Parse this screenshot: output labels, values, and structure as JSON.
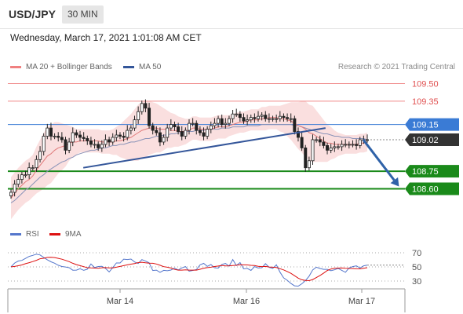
{
  "header": {
    "pair": "USD/JPY",
    "timeframe": "30 MIN"
  },
  "datetime": "Wednesday, March 17, 2021 1:01:08 AM CET",
  "legend": {
    "ma20": {
      "label": "MA 20 + Bollinger Bands",
      "color": "#f08080"
    },
    "ma50": {
      "label": "MA 50",
      "color": "#34569a"
    }
  },
  "credit": "Research © 2021 Trading Central",
  "rsi_legend": {
    "rsi": {
      "label": "RSI",
      "color": "#5577cc"
    },
    "ma9": {
      "label": "9MA",
      "color": "#dd1111"
    }
  },
  "chart_data": {
    "type": "candlestick",
    "instrument": "USD/JPY",
    "interval": "30 MIN",
    "x_ticks": [
      "Mar 14",
      "Mar 16",
      "Mar 17"
    ],
    "y_range": [
      108.45,
      109.58
    ],
    "price_levels": [
      {
        "label": "109.50",
        "value": 109.5,
        "kind": "resistance",
        "color": "#e05050"
      },
      {
        "label": "109.35",
        "value": 109.35,
        "kind": "resistance",
        "color": "#e05050"
      },
      {
        "label": "109.15",
        "value": 109.15,
        "kind": "pivot",
        "color": "#3a7bd5"
      },
      {
        "label": "109.02",
        "value": 109.02,
        "kind": "last",
        "color": "#333333"
      },
      {
        "label": "108.75",
        "value": 108.75,
        "kind": "support",
        "color": "#1a8a1a"
      },
      {
        "label": "108.60",
        "value": 108.6,
        "kind": "support",
        "color": "#1a8a1a"
      }
    ],
    "trendlines": [
      {
        "from": [
          0.19,
          108.78
        ],
        "to": [
          0.8,
          109.12
        ]
      }
    ],
    "forecast_arrow": {
      "from": [
        0.895,
        109.02
      ],
      "to": [
        0.985,
        108.62
      ]
    },
    "close": [
      108.57,
      108.64,
      108.68,
      108.72,
      108.72,
      108.78,
      108.78,
      108.85,
      108.92,
      109.05,
      109.12,
      109.05,
      109.05,
      109.04,
      109.02,
      108.93,
      109.0,
      109.08,
      109.06,
      109.04,
      109.03,
      109.01,
      108.98,
      108.98,
      108.95,
      108.98,
      109.02,
      109.0,
      109.04,
      109.06,
      109.05,
      109.04,
      109.1,
      109.12,
      109.19,
      109.26,
      109.33,
      109.29,
      109.14,
      109.1,
      109.08,
      109.0,
      109.04,
      109.12,
      109.15,
      109.13,
      109.09,
      109.05,
      109.1,
      109.16,
      109.16,
      109.1,
      109.08,
      109.05,
      109.11,
      109.14,
      109.16,
      109.2,
      109.15,
      109.16,
      109.2,
      109.24,
      109.24,
      109.21,
      109.18,
      109.19,
      109.21,
      109.2,
      109.22,
      109.23,
      109.2,
      109.2,
      109.2,
      109.2,
      109.22,
      109.21,
      109.2,
      109.2,
      109.09,
      109.04,
      108.95,
      108.78,
      108.84,
      109.02,
      109.02,
      109.0,
      108.97,
      108.93,
      108.95,
      108.96,
      108.96,
      108.98,
      108.98,
      108.98,
      108.98,
      108.97,
      109.02,
      109.02,
      109.02
    ],
    "ma20": [
      108.52,
      108.56,
      108.6,
      108.63,
      108.66,
      108.68,
      108.71,
      108.76,
      108.8,
      108.84,
      108.88,
      108.9,
      108.93,
      108.95,
      108.96,
      108.97,
      108.99,
      109.0,
      109.0,
      109.01,
      109.01,
      109.01,
      109.01,
      109.01,
      109.01,
      109.0,
      109.0,
      109.0,
      109.0,
      109.01,
      109.01,
      109.02,
      109.03,
      109.04,
      109.06,
      109.08,
      109.1,
      109.11,
      109.12,
      109.12,
      109.12,
      109.11,
      109.11,
      109.11,
      109.1,
      109.1,
      109.09,
      109.09,
      109.09,
      109.1,
      109.12,
      109.12,
      109.11,
      109.11,
      109.11,
      109.11,
      109.12,
      109.13,
      109.13,
      109.13,
      109.14,
      109.15,
      109.16,
      109.17,
      109.17,
      109.18,
      109.19,
      109.19,
      109.19,
      109.2,
      109.2,
      109.21,
      109.21,
      109.21,
      109.2,
      109.2,
      109.19,
      109.18,
      109.16,
      109.14,
      109.13,
      109.11,
      109.08,
      109.07,
      109.05,
      109.03,
      109.01,
      108.99,
      108.99,
      108.98,
      108.98,
      108.98,
      108.98,
      108.98,
      108.98,
      108.98,
      108.99,
      108.99,
      109.0
    ],
    "ma50": [
      108.48,
      108.5,
      108.53,
      108.56,
      108.59,
      108.61,
      108.64,
      108.67,
      108.7,
      108.72,
      108.75,
      108.77,
      108.79,
      108.81,
      108.83,
      108.84,
      108.86,
      108.87,
      108.89,
      108.9,
      108.91,
      108.92,
      108.93,
      108.93,
      108.94,
      108.95,
      108.95,
      108.96,
      108.97,
      108.97,
      108.98,
      108.98,
      108.99,
      109.0,
      109.0,
      109.01,
      109.02,
      109.03,
      109.03,
      109.04,
      109.05,
      109.05,
      109.06,
      109.06,
      109.07,
      109.07,
      109.08,
      109.08,
      109.09,
      109.09,
      109.09,
      109.1,
      109.1,
      109.1,
      109.11,
      109.11,
      109.11,
      109.11,
      109.12,
      109.12,
      109.12,
      109.13,
      109.13,
      109.13,
      109.13,
      109.14,
      109.14,
      109.14,
      109.14,
      109.15,
      109.15,
      109.15,
      109.15,
      109.15,
      109.15,
      109.15,
      109.15,
      109.15,
      109.14,
      109.14,
      109.13,
      109.12,
      109.11,
      109.1,
      109.09,
      109.08,
      109.07,
      109.07,
      109.06,
      109.05,
      109.05,
      109.04,
      109.04,
      109.04,
      109.03,
      109.03,
      109.03,
      109.03,
      109.02
    ],
    "bb_width": [
      0.18,
      0.18,
      0.18,
      0.18,
      0.18,
      0.18,
      0.18,
      0.2,
      0.22,
      0.24,
      0.25,
      0.25,
      0.24,
      0.22,
      0.2,
      0.18,
      0.15,
      0.13,
      0.11,
      0.1,
      0.1,
      0.1,
      0.1,
      0.1,
      0.1,
      0.1,
      0.1,
      0.1,
      0.11,
      0.12,
      0.14,
      0.16,
      0.18,
      0.2,
      0.22,
      0.24,
      0.24,
      0.24,
      0.23,
      0.22,
      0.21,
      0.2,
      0.18,
      0.16,
      0.15,
      0.14,
      0.13,
      0.12,
      0.11,
      0.1,
      0.1,
      0.1,
      0.1,
      0.1,
      0.1,
      0.1,
      0.1,
      0.1,
      0.1,
      0.1,
      0.09,
      0.09,
      0.09,
      0.09,
      0.09,
      0.09,
      0.09,
      0.09,
      0.09,
      0.1,
      0.1,
      0.1,
      0.1,
      0.1,
      0.11,
      0.12,
      0.14,
      0.16,
      0.18,
      0.2,
      0.22,
      0.24,
      0.24,
      0.24,
      0.22,
      0.2,
      0.18,
      0.16,
      0.14,
      0.12,
      0.1,
      0.09,
      0.08,
      0.08,
      0.08,
      0.08,
      0.08,
      0.08,
      0.08
    ],
    "rsi": {
      "levels": [
        70,
        50,
        30
      ],
      "range": [
        15,
        85
      ],
      "rsi": [
        50.0,
        55.5,
        58.3,
        59.2,
        62.0,
        64.9,
        66.3,
        68.0,
        66.9,
        63.4,
        60.1,
        57.2,
        55.2,
        52.3,
        50.6,
        49.9,
        48.9,
        45.3,
        45.5,
        47.5,
        45.1,
        46.8,
        54.1,
        49.0,
        50.6,
        50.9,
        47.9,
        42.9,
        49.0,
        55.6,
        55.6,
        61.0,
        60.5,
        61.1,
        57.0,
        54.9,
        60.3,
        58.2,
        55.8,
        44.9,
        45.5,
        42.3,
        45.1,
        44.6,
        45.6,
        48.2,
        45.7,
        48.6,
        50.5,
        43.9,
        45.0,
        46.2,
        52.9,
        55.0,
        50.8,
        53.3,
        48.8,
        48.3,
        53.5,
        54.9,
        51.1,
        60.4,
        51.9,
        56.1,
        47.2,
        47.9,
        45.0,
        50.4,
        48.4,
        48.9,
        54.6,
        49.4,
        47.9,
        52.9,
        42.6,
        34.5,
        31.0,
        26.6,
        23.2,
        22.8,
        26.1,
        30.6,
        36.9,
        45.8,
        49.6,
        47.8,
        46.5,
        46.5,
        44.5,
        45.9,
        47.9,
        45.1,
        42.3,
        48.6,
        50.5,
        51.5,
        48.4,
        51.5,
        52.5
      ],
      "ma9": [
        50.0,
        50.7,
        51.7,
        52.8,
        54.6,
        56.0,
        57.6,
        59.3,
        61.5,
        62.2,
        63.4,
        63.6,
        63.2,
        62.1,
        60.9,
        59.2,
        57.5,
        55.1,
        53.2,
        51.8,
        50.3,
        48.9,
        48.6,
        48.3,
        48.0,
        48.8,
        49.0,
        48.6,
        48.6,
        49.5,
        50.7,
        51.8,
        52.9,
        53.9,
        54.8,
        56.1,
        56.5,
        55.8,
        55.3,
        55.1,
        54.1,
        52.3,
        50.3,
        49.5,
        48.5,
        46.4,
        45.5,
        45.4,
        45.8,
        45.4,
        45.4,
        45.5,
        46.7,
        48.0,
        49.0,
        49.6,
        50.6,
        51.2,
        52.1,
        51.4,
        51.5,
        52.0,
        52.3,
        53.1,
        52.9,
        52.8,
        52.2,
        51.9,
        50.8,
        50.5,
        50.7,
        49.9,
        49.5,
        49.1,
        47.5,
        45.8,
        43.5,
        40.9,
        37.6,
        34.1,
        31.8,
        30.8,
        30.6,
        32.1,
        34.9,
        37.9,
        41.2,
        44.9,
        47.0,
        48.0,
        48.3,
        48.4,
        48.0,
        47.8,
        47.7,
        47.3,
        47.2,
        48.1,
        48.9
      ]
    }
  }
}
